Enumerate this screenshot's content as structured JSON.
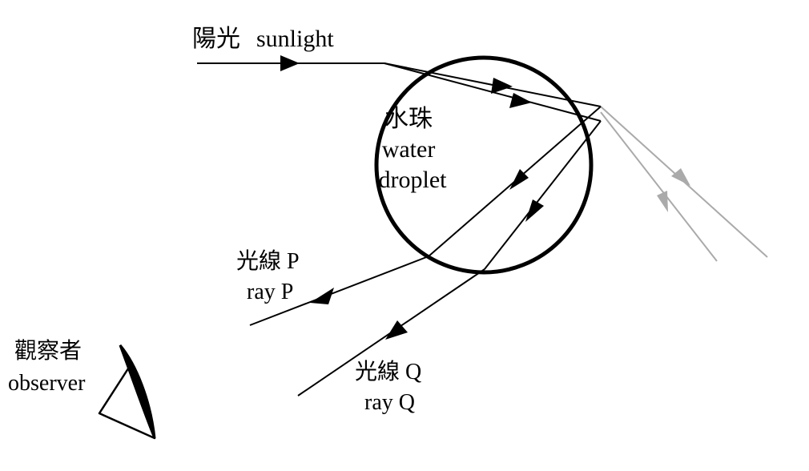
{
  "labels": {
    "sunlight_zh": "陽光",
    "sunlight_en": "sunlight",
    "droplet_zh": "水珠",
    "droplet_en_1": "water",
    "droplet_en_2": "droplet",
    "rayP_zh": "光線 P",
    "rayP_en": "ray P",
    "rayQ_zh": "光線 Q",
    "rayQ_en": "ray Q",
    "observer_zh": "觀察者",
    "observer_en": "observer"
  },
  "colors": {
    "ray": "#000000",
    "reflected_out": "#aaaaaa"
  }
}
